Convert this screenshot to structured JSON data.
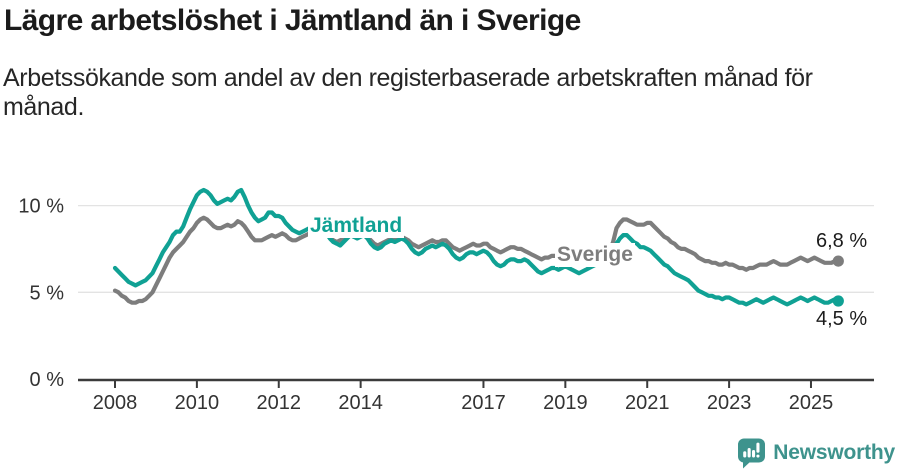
{
  "header": {
    "title": "Lägre arbetslöshet i Jämtland än i Sverige",
    "subtitle_line1": "Arbetssökande som andel av den registerbaserade arbetskraften månad för",
    "subtitle_line2": "månad."
  },
  "footer": {
    "brand": "Newsworthy",
    "brand_color": "#3e938d",
    "logo_icon": "bar-chart-speech-bubble-icon"
  },
  "chart_data": {
    "type": "line",
    "title": "Lägre arbetslöshet i Jämtland än i Sverige",
    "subtitle": "Arbetssökande som andel av den registerbaserade arbetskraften månad för månad.",
    "x_unit": "month",
    "x_start": "2008-01",
    "x_end": "2025-09",
    "ylim": [
      0,
      12
    ],
    "grid": "horizontal",
    "grid_color": "#e3e3e3",
    "axis_color": "#3b3b3b",
    "legend_position": "inline-labels",
    "y_ticks": [
      {
        "value": 0,
        "label": "0 %"
      },
      {
        "value": 5,
        "label": "5 %"
      },
      {
        "value": 10,
        "label": "10 %"
      }
    ],
    "x_ticks": [
      {
        "value": 2008,
        "label": "2008"
      },
      {
        "value": 2010,
        "label": "2010"
      },
      {
        "value": 2012,
        "label": "2012"
      },
      {
        "value": 2014,
        "label": "2014"
      },
      {
        "value": 2017,
        "label": "2017"
      },
      {
        "value": 2019,
        "label": "2019"
      },
      {
        "value": 2021,
        "label": "2021"
      },
      {
        "value": 2023,
        "label": "2023"
      },
      {
        "value": 2025,
        "label": "2025"
      }
    ],
    "series": [
      {
        "key": "jamtland",
        "name": "Jämtland",
        "color": "#10a194",
        "end_label": "4,5 %",
        "end_value": 4.5,
        "values": [
          6.4,
          6.2,
          6.0,
          5.8,
          5.6,
          5.5,
          5.4,
          5.5,
          5.6,
          5.7,
          5.9,
          6.1,
          6.5,
          6.9,
          7.3,
          7.6,
          7.9,
          8.3,
          8.5,
          8.5,
          8.8,
          9.3,
          9.8,
          10.2,
          10.6,
          10.8,
          10.9,
          10.8,
          10.6,
          10.3,
          10.1,
          10.2,
          10.3,
          10.4,
          10.3,
          10.5,
          10.8,
          10.9,
          10.5,
          10.0,
          9.6,
          9.3,
          9.1,
          9.2,
          9.3,
          9.6,
          9.6,
          9.4,
          9.4,
          9.3,
          9.0,
          8.8,
          8.6,
          8.5,
          8.4,
          8.5,
          8.6,
          8.7,
          8.6,
          8.6,
          8.7,
          8.6,
          8.4,
          8.1,
          7.9,
          7.8,
          7.7,
          7.9,
          8.1,
          8.3,
          8.2,
          8.1,
          8.2,
          8.3,
          8.1,
          7.8,
          7.6,
          7.5,
          7.6,
          7.8,
          7.9,
          8.0,
          7.9,
          8.0,
          8.1,
          8.0,
          7.8,
          7.5,
          7.3,
          7.2,
          7.3,
          7.5,
          7.6,
          7.7,
          7.6,
          7.7,
          7.8,
          7.7,
          7.5,
          7.2,
          7.0,
          6.9,
          7.0,
          7.2,
          7.3,
          7.3,
          7.2,
          7.3,
          7.4,
          7.3,
          7.1,
          6.8,
          6.6,
          6.5,
          6.6,
          6.8,
          6.9,
          6.9,
          6.8,
          6.8,
          6.9,
          6.8,
          6.6,
          6.4,
          6.2,
          6.1,
          6.2,
          6.3,
          6.4,
          6.4,
          6.3,
          6.4,
          6.5,
          6.4,
          6.3,
          6.2,
          6.1,
          6.2,
          6.3,
          6.4,
          6.5,
          6.6,
          6.6,
          6.7,
          6.8,
          6.8,
          7.2,
          7.8,
          8.1,
          8.3,
          8.3,
          8.1,
          7.9,
          7.8,
          7.6,
          7.6,
          7.5,
          7.4,
          7.2,
          7.0,
          6.8,
          6.6,
          6.5,
          6.3,
          6.1,
          6.0,
          5.9,
          5.8,
          5.7,
          5.5,
          5.3,
          5.1,
          5.0,
          4.9,
          4.8,
          4.8,
          4.7,
          4.7,
          4.6,
          4.7,
          4.7,
          4.6,
          4.5,
          4.4,
          4.4,
          4.3,
          4.4,
          4.5,
          4.6,
          4.5,
          4.4,
          4.5,
          4.6,
          4.7,
          4.6,
          4.5,
          4.4,
          4.3,
          4.4,
          4.5,
          4.6,
          4.7,
          4.6,
          4.5,
          4.6,
          4.7,
          4.6,
          4.5,
          4.4,
          4.4,
          4.5,
          4.6,
          4.5
        ]
      },
      {
        "key": "sverige",
        "name": "Sverige",
        "color": "#7d7d7d",
        "end_label": "6,8 %",
        "end_value": 6.8,
        "values": [
          5.1,
          5.0,
          4.8,
          4.7,
          4.5,
          4.4,
          4.4,
          4.5,
          4.5,
          4.6,
          4.8,
          5.0,
          5.4,
          5.8,
          6.2,
          6.6,
          7.0,
          7.3,
          7.5,
          7.7,
          7.9,
          8.2,
          8.5,
          8.7,
          9.0,
          9.2,
          9.3,
          9.2,
          9.0,
          8.8,
          8.7,
          8.7,
          8.8,
          8.9,
          8.8,
          8.9,
          9.1,
          9.0,
          8.8,
          8.5,
          8.2,
          8.0,
          8.0,
          8.0,
          8.1,
          8.2,
          8.3,
          8.2,
          8.3,
          8.4,
          8.3,
          8.1,
          8.0,
          8.0,
          8.1,
          8.2,
          8.3,
          8.4,
          8.3,
          8.4,
          8.5,
          8.6,
          8.4,
          8.2,
          8.0,
          7.9,
          8.0,
          8.1,
          8.2,
          8.3,
          8.2,
          8.2,
          8.3,
          8.3,
          8.2,
          8.0,
          7.8,
          7.7,
          7.8,
          7.9,
          8.0,
          8.1,
          8.0,
          8.1,
          8.2,
          8.1,
          8.0,
          7.8,
          7.7,
          7.6,
          7.7,
          7.8,
          7.9,
          8.0,
          7.9,
          7.9,
          8.0,
          8.0,
          7.8,
          7.6,
          7.5,
          7.4,
          7.5,
          7.6,
          7.7,
          7.8,
          7.7,
          7.7,
          7.8,
          7.8,
          7.6,
          7.5,
          7.4,
          7.3,
          7.4,
          7.5,
          7.6,
          7.6,
          7.5,
          7.5,
          7.4,
          7.3,
          7.2,
          7.1,
          7.0,
          6.9,
          7.0,
          7.0,
          7.1,
          7.1,
          7.1,
          7.1,
          7.2,
          7.2,
          7.1,
          7.0,
          7.0,
          7.1,
          7.1,
          7.2,
          7.2,
          7.3,
          7.2,
          7.3,
          7.4,
          7.4,
          7.9,
          8.7,
          9.0,
          9.2,
          9.2,
          9.1,
          9.0,
          8.9,
          8.9,
          8.9,
          9.0,
          9.0,
          8.8,
          8.6,
          8.4,
          8.2,
          8.1,
          7.9,
          7.8,
          7.6,
          7.5,
          7.5,
          7.4,
          7.3,
          7.2,
          7.0,
          6.9,
          6.8,
          6.8,
          6.7,
          6.7,
          6.6,
          6.6,
          6.7,
          6.6,
          6.6,
          6.5,
          6.4,
          6.4,
          6.3,
          6.4,
          6.4,
          6.5,
          6.6,
          6.6,
          6.6,
          6.7,
          6.8,
          6.7,
          6.6,
          6.6,
          6.6,
          6.7,
          6.8,
          6.9,
          7.0,
          6.9,
          6.8,
          6.9,
          7.0,
          6.9,
          6.8,
          6.7,
          6.7,
          6.7,
          6.8,
          6.8
        ]
      }
    ]
  }
}
